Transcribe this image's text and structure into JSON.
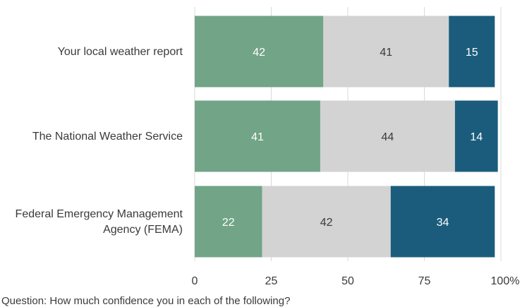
{
  "chart_data": {
    "type": "bar",
    "orientation": "horizontal",
    "stacked": true,
    "categories": [
      [
        "Your local weather report"
      ],
      [
        "The National Weather Service"
      ],
      [
        "Federal Emergency Management",
        "Agency (FEMA)"
      ]
    ],
    "series": [
      {
        "values": [
          42,
          41,
          22
        ],
        "color": "#72a487",
        "label_color": "#ffffff"
      },
      {
        "values": [
          41,
          44,
          42
        ],
        "color": "#d3d3d3",
        "label_color": "#3a3a3a"
      },
      {
        "values": [
          15,
          14,
          34
        ],
        "color": "#1b5c7c",
        "label_color": "#ffffff"
      }
    ],
    "xlim": [
      0,
      100
    ],
    "x_ticks": [
      "0",
      "25",
      "50",
      "75",
      "100%"
    ],
    "x_tick_values": [
      0,
      25,
      50,
      75,
      100
    ],
    "grid": true
  },
  "footnote": "Question: How much confidence you in each of the following?"
}
